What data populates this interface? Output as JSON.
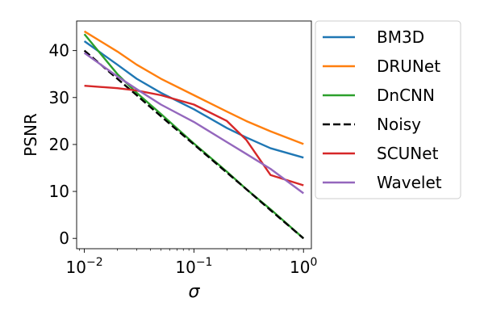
{
  "chart_data": {
    "type": "line",
    "xlabel": "σ",
    "ylabel": "PSNR",
    "xscale": "log",
    "xlim": [
      0.0085,
      1.18
    ],
    "ylim": [
      -2.2,
      46.3
    ],
    "x_ticks": [
      {
        "value": 0.01,
        "base": "10",
        "exp": "−2"
      },
      {
        "value": 0.1,
        "base": "10",
        "exp": "−1"
      },
      {
        "value": 1,
        "base": "10",
        "exp": "0"
      }
    ],
    "y_ticks": [
      {
        "value": 0,
        "label": "0"
      },
      {
        "value": 10,
        "label": "10"
      },
      {
        "value": 20,
        "label": "20"
      },
      {
        "value": 30,
        "label": "30"
      },
      {
        "value": 40,
        "label": "40"
      }
    ],
    "x": [
      0.01,
      0.02,
      0.03,
      0.05,
      0.1,
      0.2,
      0.3,
      0.5,
      1.0
    ],
    "series": [
      {
        "name": "BM3D",
        "color": "#1f77b4",
        "dash": "solid",
        "values": [
          42.0,
          37.0,
          34.0,
          31.0,
          27.5,
          23.5,
          21.5,
          19.2,
          17.2
        ]
      },
      {
        "name": "DRUNet",
        "color": "#ff7f0e",
        "dash": "solid",
        "values": [
          44.1,
          39.8,
          37.0,
          34.0,
          30.5,
          27.0,
          25.0,
          22.8,
          20.1
        ]
      },
      {
        "name": "DnCNN",
        "color": "#2ca02c",
        "dash": "solid",
        "values": [
          43.5,
          35.0,
          31.0,
          26.5,
          20.2,
          14.2,
          10.5,
          6.2,
          0.0
        ]
      },
      {
        "name": "Noisy",
        "color": "#000000",
        "dash": "dashed",
        "values": [
          40.0,
          34.0,
          30.5,
          26.0,
          20.0,
          14.0,
          10.5,
          6.0,
          0.0
        ]
      },
      {
        "name": "SCUNet",
        "color": "#d62728",
        "dash": "solid",
        "values": [
          32.5,
          32.0,
          31.5,
          30.5,
          28.5,
          25.0,
          21.0,
          13.5,
          11.3
        ]
      },
      {
        "name": "Wavelet",
        "color": "#9467bd",
        "dash": "solid",
        "values": [
          39.5,
          34.5,
          31.8,
          28.5,
          24.8,
          20.5,
          18.0,
          14.8,
          9.6
        ]
      }
    ],
    "legend": {
      "placement": "outside right, top",
      "entries": [
        "BM3D",
        "DRUNet",
        "DnCNN",
        "Noisy",
        "SCUNet",
        "Wavelet"
      ]
    },
    "grid": false
  }
}
